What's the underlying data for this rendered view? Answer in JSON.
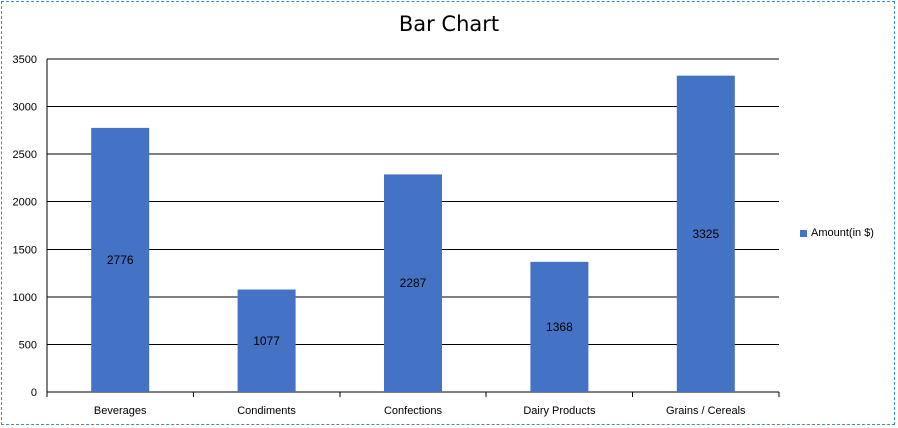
{
  "chart_data": {
    "type": "bar",
    "title": "Bar Chart",
    "xlabel": "",
    "ylabel": "",
    "categories": [
      "Beverages",
      "Condiments",
      "Confections",
      "Dairy Products",
      "Grains / Cereals"
    ],
    "series": [
      {
        "name": "Amount(in $)",
        "values": [
          2776,
          1077,
          2287,
          1368,
          3325
        ],
        "color": "#4472C4"
      }
    ],
    "ylim": [
      0,
      3500
    ],
    "yticks": [
      0,
      500,
      1000,
      1500,
      2000,
      2500,
      3000,
      3500
    ],
    "grid": true,
    "legend_position": "right",
    "data_labels": true
  }
}
